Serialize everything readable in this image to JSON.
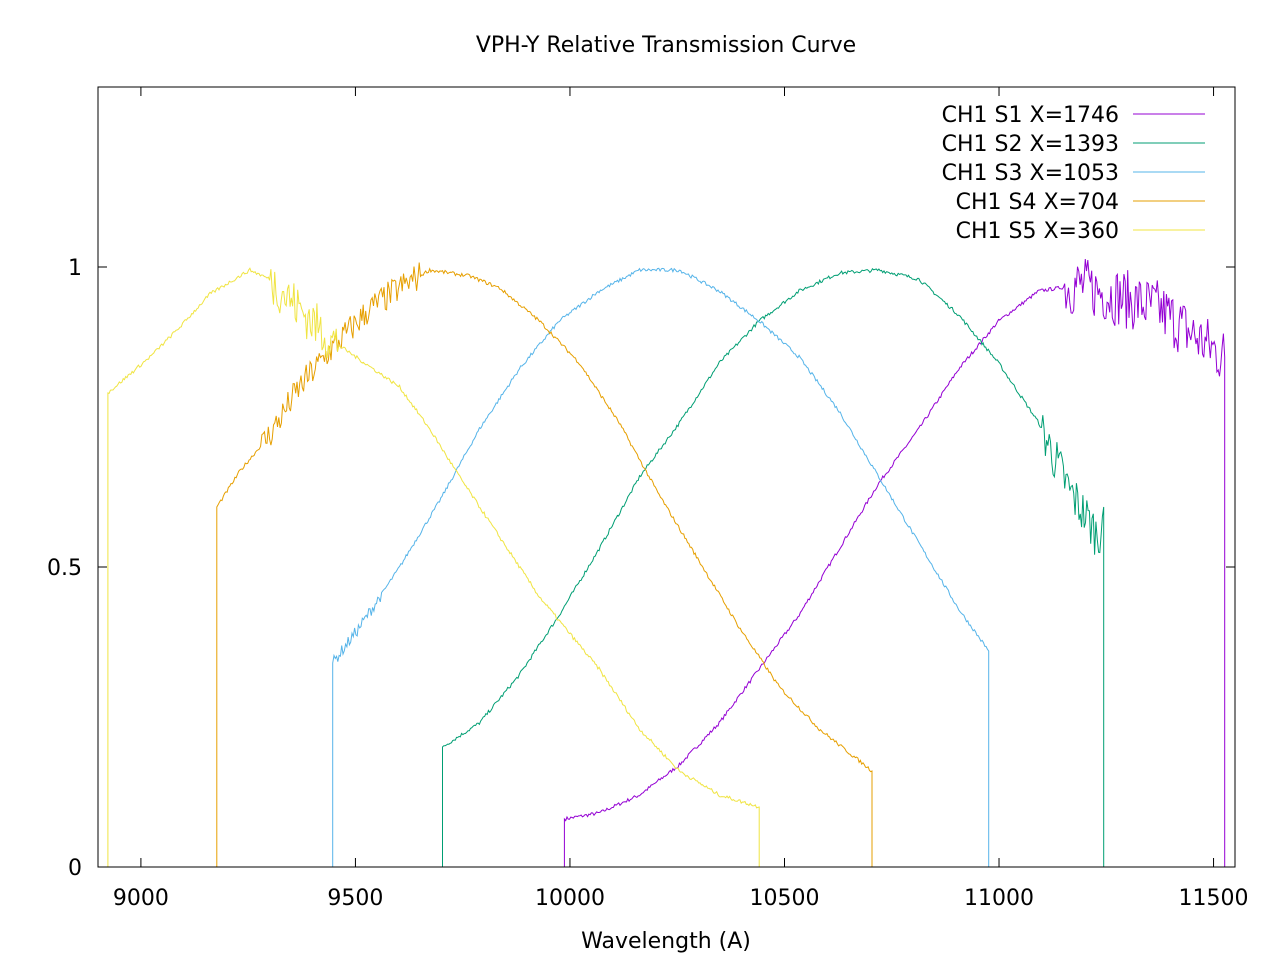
{
  "chart_data": {
    "type": "line",
    "title": "VPH-Y Relative Transmission Curve",
    "xlabel": "Wavelength (A)",
    "ylabel": "",
    "xlim": [
      8900,
      11550
    ],
    "ylim": [
      0,
      1.3
    ],
    "xticks": [
      9000,
      9500,
      10000,
      10500,
      11000,
      11500
    ],
    "yticks": [
      0,
      0.5,
      1
    ],
    "ytick_labels": [
      "0",
      "0.5",
      "1"
    ],
    "legend_position": "top-right",
    "grid": false,
    "series": [
      {
        "name": "CH1 S1 X=1746",
        "color": "#9400d3",
        "points": [
          [
            9987,
            0
          ],
          [
            9987,
            0.08
          ],
          [
            10068,
            0.09
          ],
          [
            10162,
            0.12
          ],
          [
            10255,
            0.17
          ],
          [
            10348,
            0.24
          ],
          [
            10441,
            0.33
          ],
          [
            10534,
            0.42
          ],
          [
            10627,
            0.53
          ],
          [
            10720,
            0.64
          ],
          [
            10813,
            0.73
          ],
          [
            10906,
            0.83
          ],
          [
            10999,
            0.91
          ],
          [
            11093,
            0.96
          ],
          [
            11186,
            0.97
          ],
          [
            11279,
            0.95
          ],
          [
            11372,
            0.93
          ],
          [
            11465,
            0.88
          ],
          [
            11526,
            0.85
          ],
          [
            11526,
            0
          ]
        ]
      },
      {
        "name": "CH1 S2 X=1393",
        "color": "#009e73",
        "points": [
          [
            9703,
            0
          ],
          [
            9703,
            0.2
          ],
          [
            9789,
            0.24
          ],
          [
            9882,
            0.32
          ],
          [
            9975,
            0.42
          ],
          [
            10068,
            0.53
          ],
          [
            10162,
            0.65
          ],
          [
            10255,
            0.74
          ],
          [
            10348,
            0.84
          ],
          [
            10441,
            0.91
          ],
          [
            10534,
            0.96
          ],
          [
            10627,
            0.99
          ],
          [
            10720,
            0.995
          ],
          [
            10813,
            0.98
          ],
          [
            10906,
            0.92
          ],
          [
            10999,
            0.84
          ],
          [
            11093,
            0.74
          ],
          [
            11162,
            0.63
          ],
          [
            11232,
            0.55
          ],
          [
            11244,
            0.6
          ],
          [
            11244,
            0
          ]
        ]
      },
      {
        "name": "CH1 S3 X=1053",
        "color": "#56b4e9",
        "points": [
          [
            9447,
            0
          ],
          [
            9447,
            0.34
          ],
          [
            9510,
            0.4
          ],
          [
            9603,
            0.5
          ],
          [
            9696,
            0.61
          ],
          [
            9789,
            0.73
          ],
          [
            9882,
            0.83
          ],
          [
            9975,
            0.91
          ],
          [
            10068,
            0.96
          ],
          [
            10162,
            0.995
          ],
          [
            10255,
            0.995
          ],
          [
            10348,
            0.96
          ],
          [
            10441,
            0.91
          ],
          [
            10534,
            0.85
          ],
          [
            10627,
            0.76
          ],
          [
            10720,
            0.65
          ],
          [
            10813,
            0.54
          ],
          [
            10906,
            0.43
          ],
          [
            10976,
            0.36
          ],
          [
            10976,
            0
          ]
        ]
      },
      {
        "name": "CH1 S4 X=704",
        "color": "#e69f00",
        "points": [
          [
            9177,
            0
          ],
          [
            9177,
            0.6
          ],
          [
            9231,
            0.66
          ],
          [
            9300,
            0.72
          ],
          [
            9370,
            0.8
          ],
          [
            9440,
            0.86
          ],
          [
            9533,
            0.93
          ],
          [
            9603,
            0.965
          ],
          [
            9673,
            0.995
          ],
          [
            9766,
            0.985
          ],
          [
            9836,
            0.965
          ],
          [
            9929,
            0.91
          ],
          [
            10022,
            0.84
          ],
          [
            10115,
            0.74
          ],
          [
            10208,
            0.62
          ],
          [
            10301,
            0.51
          ],
          [
            10394,
            0.4
          ],
          [
            10488,
            0.3
          ],
          [
            10581,
            0.23
          ],
          [
            10704,
            0.16
          ],
          [
            10704,
            0
          ]
        ]
      },
      {
        "name": "CH1 S5 X=360",
        "color": "#f0e442",
        "points": [
          [
            8923,
            0
          ],
          [
            8923,
            0.79
          ],
          [
            9021,
            0.85
          ],
          [
            9091,
            0.9
          ],
          [
            9161,
            0.955
          ],
          [
            9254,
            0.995
          ],
          [
            9300,
            0.98
          ],
          [
            9440,
            0.88
          ],
          [
            9603,
            0.8
          ],
          [
            9673,
            0.73
          ],
          [
            9743,
            0.65
          ],
          [
            9836,
            0.55
          ],
          [
            9929,
            0.45
          ],
          [
            10068,
            0.33
          ],
          [
            10162,
            0.23
          ],
          [
            10255,
            0.16
          ],
          [
            10348,
            0.12
          ],
          [
            10441,
            0.1
          ],
          [
            10441,
            0
          ]
        ]
      }
    ]
  }
}
